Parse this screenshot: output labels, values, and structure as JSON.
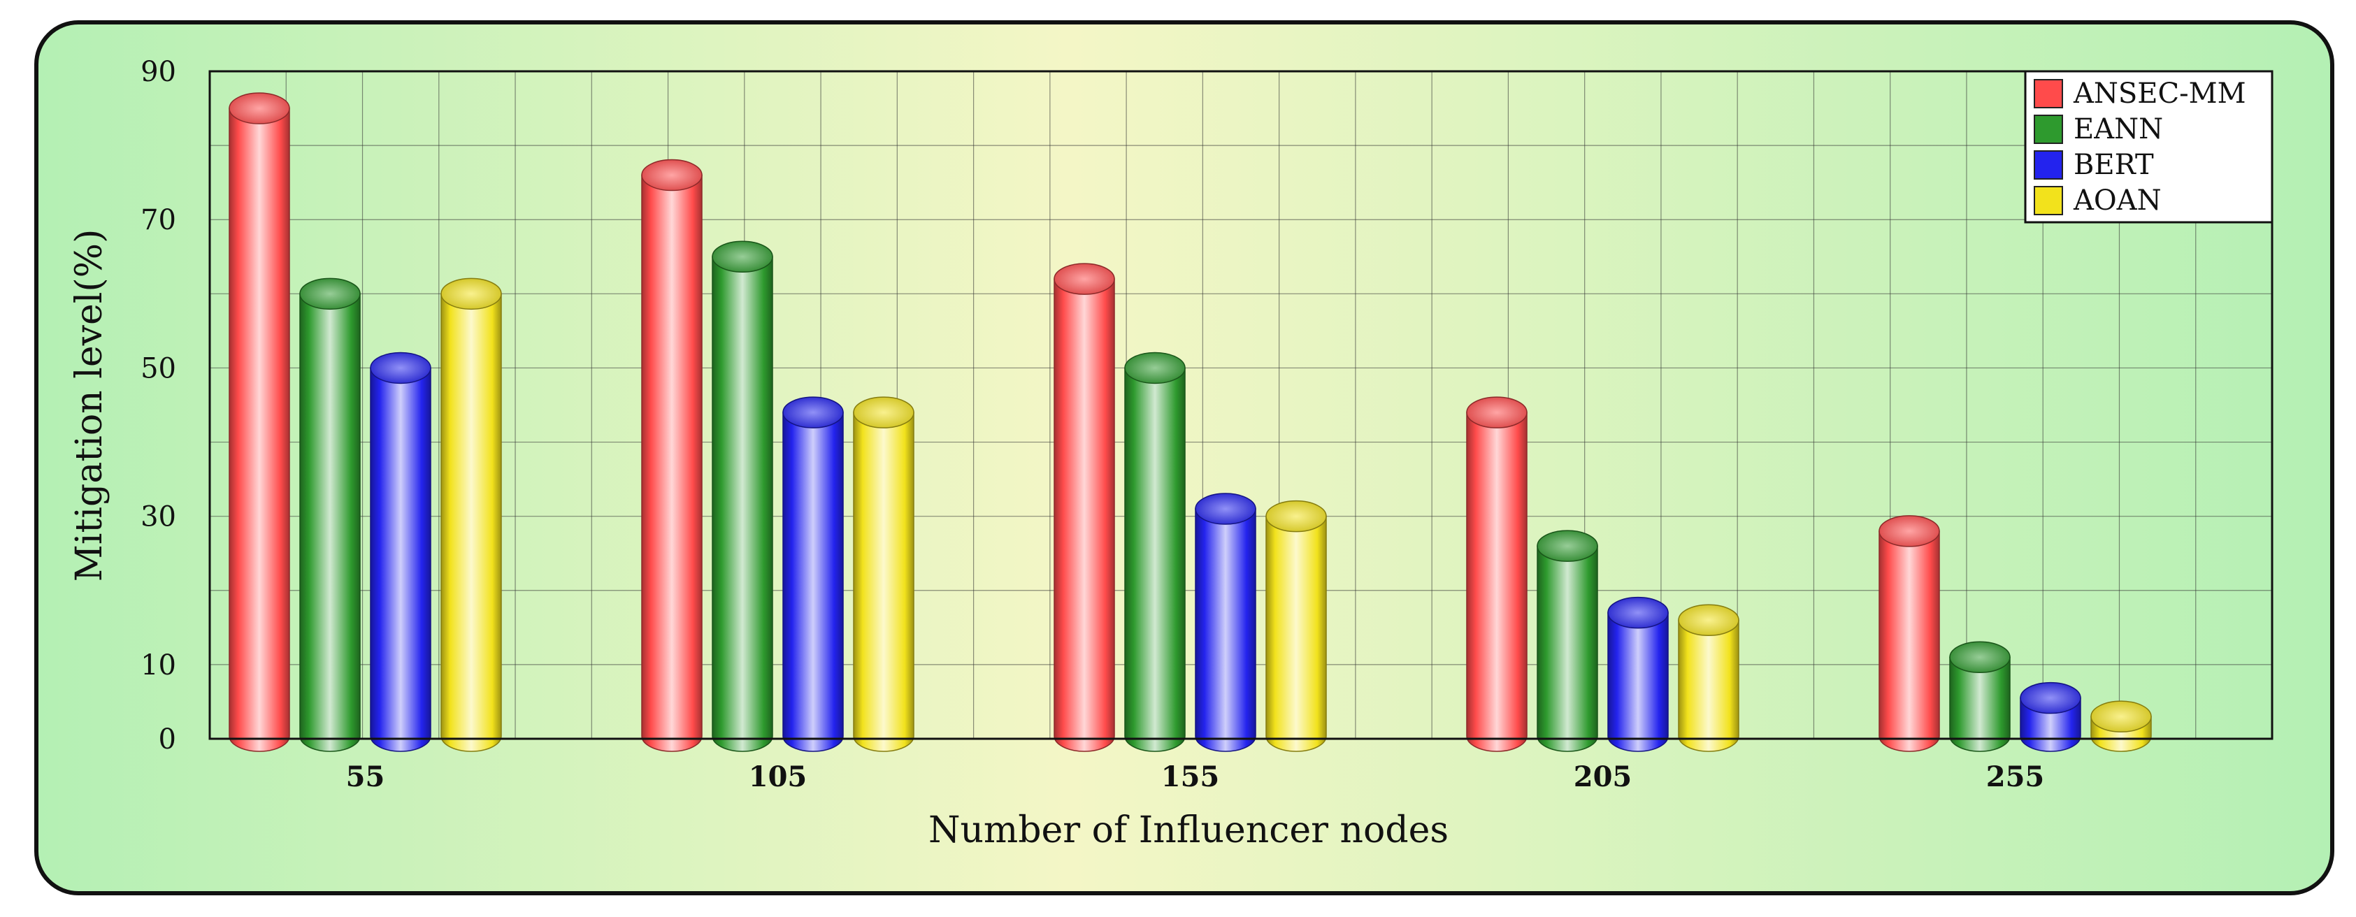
{
  "chart_data": {
    "type": "bar",
    "title": "",
    "xlabel": "Number of Influencer nodes",
    "ylabel": "Mitigation level(%)",
    "categories": [
      "55",
      "105",
      "155",
      "205",
      "255"
    ],
    "yticks": [
      "0",
      "10",
      "30",
      "50",
      "70",
      "90"
    ],
    "ylim": [
      0,
      90
    ],
    "grid": true,
    "legend_position": "top-right",
    "series": [
      {
        "name": "ANSEC-MM",
        "color": "#ff4b4b",
        "values": [
          85,
          76,
          62,
          44,
          28
        ]
      },
      {
        "name": "EANN",
        "color": "#2e9a2e",
        "values": [
          60,
          65,
          50,
          26,
          11
        ]
      },
      {
        "name": "BERT",
        "color": "#2323ee",
        "values": [
          50,
          44,
          31,
          17,
          5.5
        ]
      },
      {
        "name": "AOAN",
        "color": "#f2e21c",
        "values": [
          60,
          44,
          30,
          16,
          3
        ]
      }
    ]
  }
}
